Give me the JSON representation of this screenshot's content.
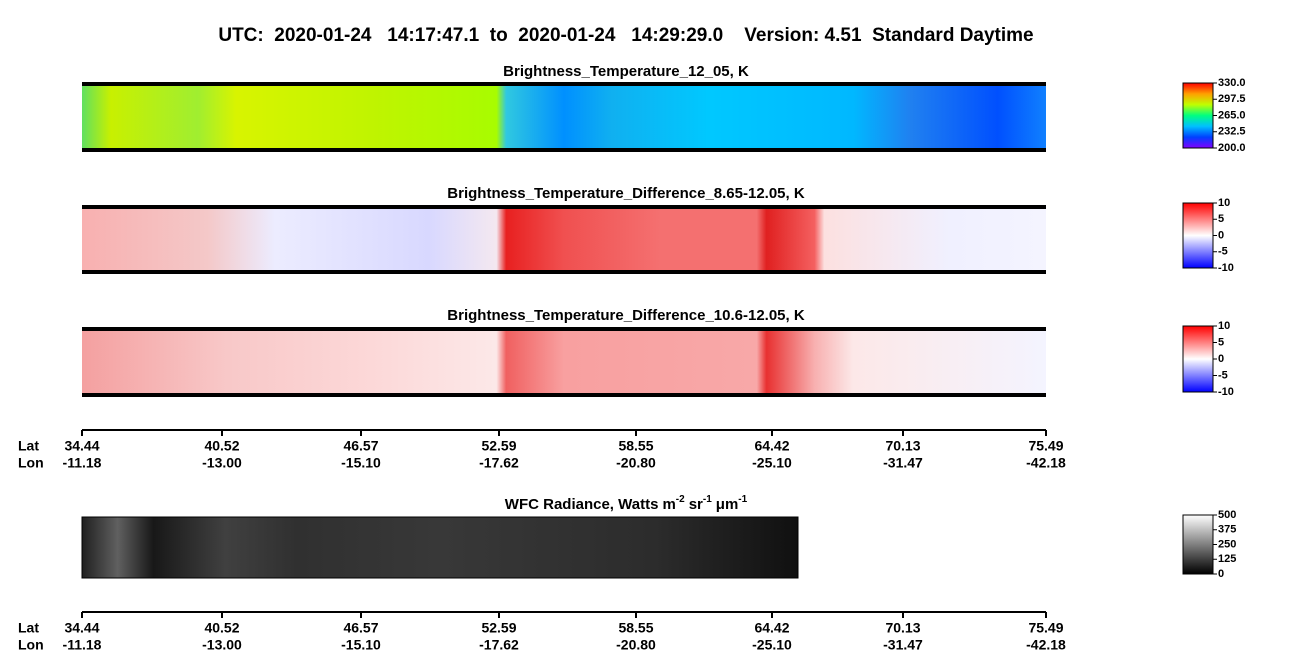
{
  "title": "UTC:  2020-01-24   14:17:47.1  to  2020-01-24   14:29:29.0    Version: 4.51  Standard Daytime",
  "panels": [
    {
      "title": "Brightness_Temperature_12_05, K",
      "colorbar": {
        "range": [
          200,
          330
        ],
        "ticks": [
          {
            "value": 200,
            "label": "200.0"
          },
          232.5,
          {
            "value": 265,
            "label": "265.0"
          },
          297.5,
          {
            "value": 330,
            "label": "330.0"
          }
        ],
        "colors": [
          "#8000ff",
          "#0040ff",
          "#00c0ff",
          "#00ff80",
          "#c0ff00",
          "#ffa000",
          "#ff0000"
        ]
      }
    },
    {
      "title": "Brightness_Temperature_Difference_8.65-12.05, K",
      "colorbar": {
        "range": [
          -10,
          10
        ],
        "ticks": [
          -10,
          -5,
          0,
          5,
          10
        ],
        "colors": [
          "#0000ff",
          "#ffffff",
          "#ff0000"
        ]
      }
    },
    {
      "title": "Brightness_Temperature_Difference_10.6-12.05, K",
      "colorbar": {
        "range": [
          -10,
          10
        ],
        "ticks": [
          -10,
          -5,
          0,
          5,
          10
        ],
        "colors": [
          "#0000ff",
          "#ffffff",
          "#ff0000"
        ]
      }
    }
  ],
  "wfc": {
    "title": "WFC Radiance, Watts",
    "units": [
      {
        "base": "m",
        "exp": "-2"
      },
      {
        "base": "sr",
        "exp": "-1"
      },
      {
        "base": "μm",
        "exp": "-1"
      }
    ],
    "colorbar": {
      "range": [
        0,
        500
      ],
      "ticks": [
        0,
        125,
        250,
        375,
        500
      ],
      "colors": [
        "#000000",
        "#ffffff"
      ]
    }
  },
  "axes": [
    {
      "lat_label": "Lat",
      "lon_label": "Lon",
      "lat": [
        "34.44",
        "40.52",
        "46.57",
        "52.59",
        "58.55",
        "64.42",
        "70.13",
        "75.49"
      ],
      "lon": [
        "-11.18",
        "-13.00",
        "-15.10",
        "-17.62",
        "-20.80",
        "-25.10",
        "-31.47",
        "-42.18"
      ]
    },
    {
      "lat_label": "Lat",
      "lon_label": "Lon",
      "lat": [
        "34.44",
        "40.52",
        "46.57",
        "52.59",
        "58.55",
        "64.42",
        "70.13",
        "75.49"
      ],
      "lon": [
        "-11.18",
        "-13.00",
        "-15.10",
        "-17.62",
        "-20.80",
        "-25.10",
        "-31.47",
        "-42.18"
      ]
    }
  ]
}
